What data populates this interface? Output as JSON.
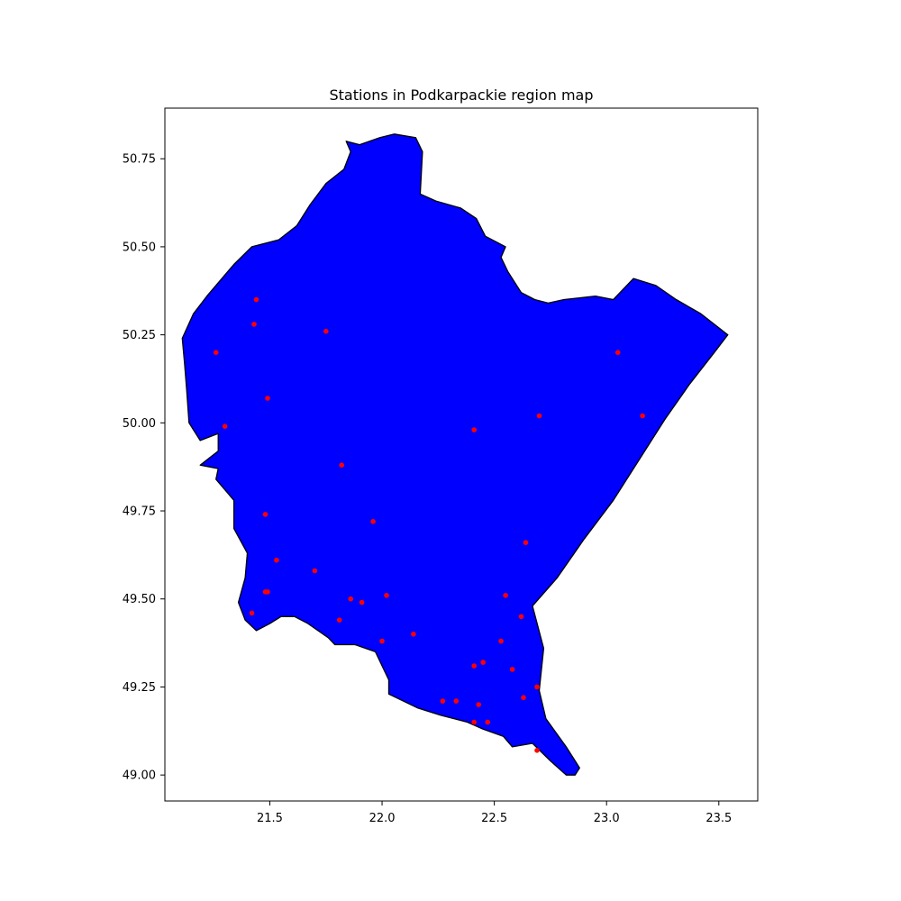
{
  "chart_data": {
    "type": "scatter",
    "title": "Stations in Podkarpackie region map",
    "xlabel": "",
    "ylabel": "",
    "xlim": [
      21.0326,
      23.6734
    ],
    "ylim": [
      48.9262,
      50.8938
    ],
    "xticks": [
      "21.5",
      "22.0",
      "22.5",
      "23.0",
      "23.5"
    ],
    "xtick_values": [
      21.5,
      22.0,
      22.5,
      23.0,
      23.5
    ],
    "yticks": [
      "49.00",
      "49.25",
      "49.50",
      "49.75",
      "50.00",
      "50.25",
      "50.50",
      "50.75"
    ],
    "ytick_values": [
      49.0,
      49.25,
      49.5,
      49.75,
      50.0,
      50.25,
      50.5,
      50.75
    ],
    "grid": false,
    "region_fill": "#0000ff",
    "region_edge": "#000000",
    "marker_color": "#ff0000",
    "region_outline": [
      [
        21.99,
        50.81
      ],
      [
        22.055,
        50.82
      ],
      [
        22.15,
        50.81
      ],
      [
        22.18,
        50.77
      ],
      [
        22.17,
        50.65
      ],
      [
        22.24,
        50.63
      ],
      [
        22.35,
        50.61
      ],
      [
        22.42,
        50.58
      ],
      [
        22.46,
        50.53
      ],
      [
        22.55,
        50.5
      ],
      [
        22.53,
        50.47
      ],
      [
        22.56,
        50.43
      ],
      [
        22.62,
        50.37
      ],
      [
        22.68,
        50.35
      ],
      [
        22.74,
        50.34
      ],
      [
        22.81,
        50.35
      ],
      [
        22.95,
        50.36
      ],
      [
        23.03,
        50.35
      ],
      [
        23.12,
        50.41
      ],
      [
        23.22,
        50.39
      ],
      [
        23.31,
        50.35
      ],
      [
        23.42,
        50.31
      ],
      [
        23.54,
        50.25
      ],
      [
        23.48,
        50.2
      ],
      [
        23.37,
        50.11
      ],
      [
        23.26,
        50.01
      ],
      [
        23.15,
        49.9
      ],
      [
        23.03,
        49.78
      ],
      [
        22.9,
        49.67
      ],
      [
        22.78,
        49.56
      ],
      [
        22.67,
        49.48
      ],
      [
        22.72,
        49.36
      ],
      [
        22.7,
        49.24
      ],
      [
        22.73,
        49.16
      ],
      [
        22.82,
        49.08
      ],
      [
        22.88,
        49.02
      ],
      [
        22.86,
        49.0
      ],
      [
        22.82,
        49.0
      ],
      [
        22.75,
        49.04
      ],
      [
        22.67,
        49.09
      ],
      [
        22.58,
        49.08
      ],
      [
        22.54,
        49.11
      ],
      [
        22.45,
        49.13
      ],
      [
        22.38,
        49.15
      ],
      [
        22.26,
        49.17
      ],
      [
        22.16,
        49.19
      ],
      [
        22.03,
        49.23
      ],
      [
        22.03,
        49.27
      ],
      [
        21.97,
        49.35
      ],
      [
        21.88,
        49.37
      ],
      [
        21.79,
        49.37
      ],
      [
        21.76,
        49.39
      ],
      [
        21.67,
        49.43
      ],
      [
        21.61,
        49.45
      ],
      [
        21.55,
        49.45
      ],
      [
        21.5,
        49.43
      ],
      [
        21.44,
        49.41
      ],
      [
        21.39,
        49.44
      ],
      [
        21.36,
        49.49
      ],
      [
        21.39,
        49.56
      ],
      [
        21.4,
        49.63
      ],
      [
        21.34,
        49.7
      ],
      [
        21.34,
        49.78
      ],
      [
        21.26,
        49.84
      ],
      [
        21.27,
        49.87
      ],
      [
        21.19,
        49.88
      ],
      [
        21.27,
        49.92
      ],
      [
        21.27,
        49.97
      ],
      [
        21.19,
        49.95
      ],
      [
        21.14,
        50.0
      ],
      [
        21.13,
        50.09
      ],
      [
        21.12,
        50.17
      ],
      [
        21.11,
        50.24
      ],
      [
        21.16,
        50.31
      ],
      [
        21.22,
        50.36
      ],
      [
        21.3,
        50.42
      ],
      [
        21.34,
        50.45
      ],
      [
        21.42,
        50.5
      ],
      [
        21.54,
        50.52
      ],
      [
        21.62,
        50.56
      ],
      [
        21.68,
        50.62
      ],
      [
        21.75,
        50.68
      ],
      [
        21.83,
        50.72
      ],
      [
        21.86,
        50.77
      ],
      [
        21.84,
        50.8
      ],
      [
        21.9,
        50.79
      ]
    ],
    "points": [
      {
        "x": 21.44,
        "y": 50.35
      },
      {
        "x": 21.43,
        "y": 50.28
      },
      {
        "x": 21.75,
        "y": 50.26
      },
      {
        "x": 21.26,
        "y": 50.2
      },
      {
        "x": 23.05,
        "y": 50.2
      },
      {
        "x": 21.49,
        "y": 50.07
      },
      {
        "x": 22.7,
        "y": 50.02
      },
      {
        "x": 23.16,
        "y": 50.02
      },
      {
        "x": 21.3,
        "y": 49.99
      },
      {
        "x": 22.41,
        "y": 49.98
      },
      {
        "x": 21.82,
        "y": 49.88
      },
      {
        "x": 21.48,
        "y": 49.74
      },
      {
        "x": 21.96,
        "y": 49.72
      },
      {
        "x": 22.64,
        "y": 49.66
      },
      {
        "x": 21.53,
        "y": 49.61
      },
      {
        "x": 21.7,
        "y": 49.58
      },
      {
        "x": 21.48,
        "y": 49.52
      },
      {
        "x": 21.49,
        "y": 49.52
      },
      {
        "x": 22.02,
        "y": 49.51
      },
      {
        "x": 22.55,
        "y": 49.51
      },
      {
        "x": 21.86,
        "y": 49.5
      },
      {
        "x": 21.91,
        "y": 49.49
      },
      {
        "x": 21.42,
        "y": 49.46
      },
      {
        "x": 21.81,
        "y": 49.44
      },
      {
        "x": 22.62,
        "y": 49.45
      },
      {
        "x": 22.14,
        "y": 49.4
      },
      {
        "x": 22.53,
        "y": 49.38
      },
      {
        "x": 22.0,
        "y": 49.38
      },
      {
        "x": 22.41,
        "y": 49.31
      },
      {
        "x": 22.45,
        "y": 49.32
      },
      {
        "x": 22.58,
        "y": 49.3
      },
      {
        "x": 22.69,
        "y": 49.25
      },
      {
        "x": 22.63,
        "y": 49.22
      },
      {
        "x": 22.27,
        "y": 49.21
      },
      {
        "x": 22.33,
        "y": 49.21
      },
      {
        "x": 22.43,
        "y": 49.2
      },
      {
        "x": 22.41,
        "y": 49.15
      },
      {
        "x": 22.47,
        "y": 49.15
      },
      {
        "x": 22.69,
        "y": 49.07
      }
    ]
  }
}
